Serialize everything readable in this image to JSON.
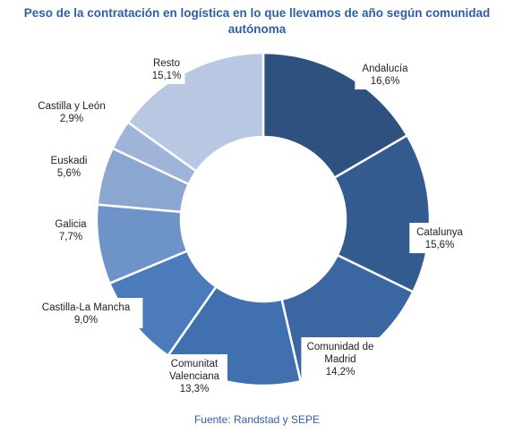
{
  "title_lines": [
    "Peso de la contratación en logística en lo que llevamos de año según comunidad",
    "autónoma"
  ],
  "source": "Fuente: Randstad y SEPE",
  "chart_data": {
    "type": "donut",
    "title": "Peso de la contratación en logística en lo que llevamos de año según comunidad autónoma",
    "slices": [
      {
        "name": [
          "Andalucía"
        ],
        "value": 16.6,
        "label": "16,6%",
        "color": "#2E5180"
      },
      {
        "name": [
          "Catalunya"
        ],
        "value": 15.6,
        "label": "15,6%",
        "color": "#345B90"
      },
      {
        "name": [
          "Comunidad de",
          "Madrid"
        ],
        "value": 14.2,
        "label": "14,2%",
        "color": "#3A66A2"
      },
      {
        "name": [
          "Comunitat",
          "Valenciana"
        ],
        "value": 13.3,
        "label": "13,3%",
        "color": "#4170B1"
      },
      {
        "name": [
          "Castilla-La Mancha"
        ],
        "value": 9.0,
        "label": "9,0%",
        "color": "#4B7BBB"
      },
      {
        "name": [
          "Galicia"
        ],
        "value": 7.7,
        "label": "7,7%",
        "color": "#6E93C8"
      },
      {
        "name": [
          "Euskadi"
        ],
        "value": 5.6,
        "label": "5,6%",
        "color": "#8BA6D1"
      },
      {
        "name": [
          "Castilla y León"
        ],
        "value": 2.9,
        "label": "2,9%",
        "color": "#9FB4D8"
      },
      {
        "name": [
          "Resto"
        ],
        "value": 15.1,
        "label": "15,1%",
        "color": "#B8C7E2"
      }
    ]
  }
}
